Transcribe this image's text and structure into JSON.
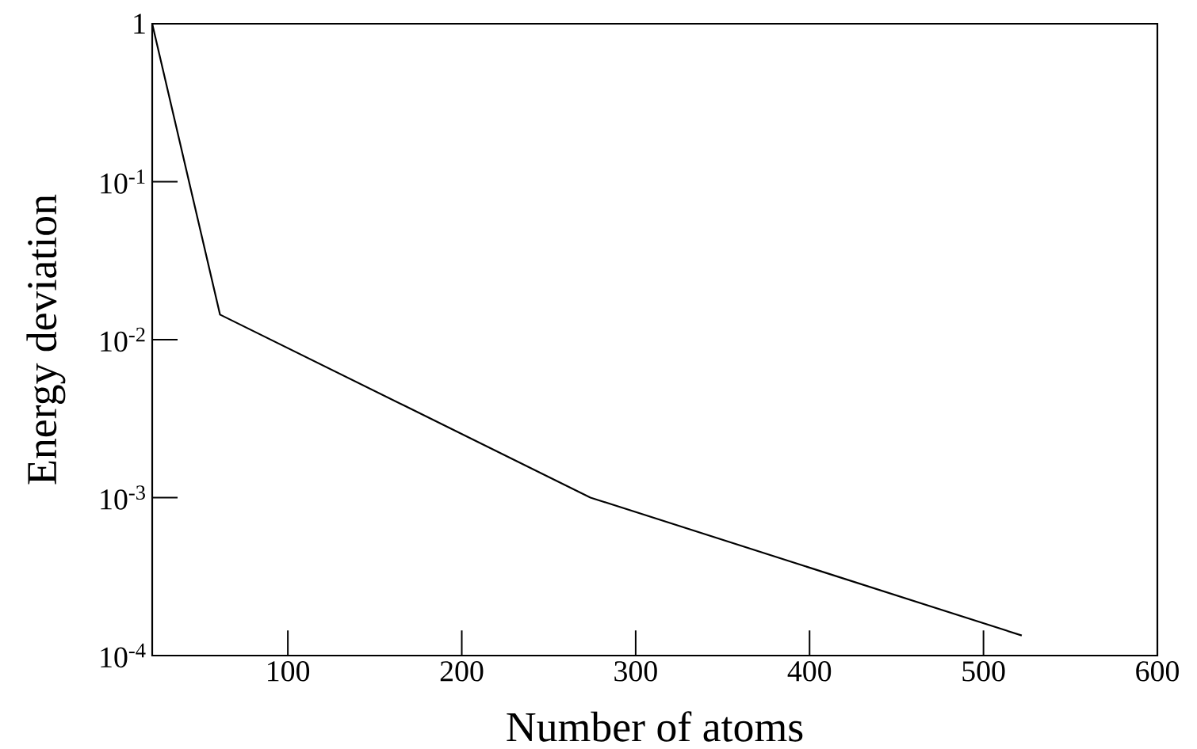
{
  "chart_data": {
    "type": "line",
    "xlabel": "Number of atoms",
    "ylabel": "Energy deviation",
    "log": "y",
    "x": [
      22,
      61,
      274,
      522
    ],
    "series": [
      {
        "color": "#000000",
        "values": [
          1,
          0.0144,
          0.001,
          0.000134
        ]
      }
    ],
    "xlim": [
      22,
      600
    ],
    "xticks": [
      100,
      200,
      300,
      400,
      500,
      600
    ],
    "ylim": [
      0.0001,
      1
    ],
    "yticks": [
      {
        "value": 1,
        "label": "1"
      },
      {
        "value": 0.1,
        "label": "10$^{-1}$"
      },
      {
        "value": 0.01,
        "label": "10$^{-2}$"
      },
      {
        "value": 0.001,
        "label": "10$^{-3}$"
      },
      {
        "value": 0.0001,
        "label": "10$^{-4}$"
      }
    ],
    "marker": "none",
    "line_style": "solid"
  }
}
